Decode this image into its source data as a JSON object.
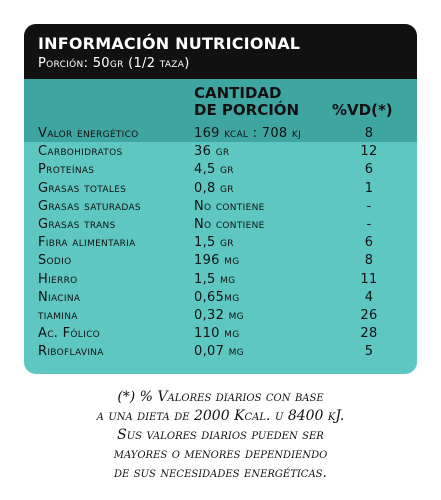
{
  "label": {
    "title": "INFORMACIÓN NUTRICIONAL",
    "portion": "Porción: 50gr (1/2 taza)",
    "column_headers": {
      "quantity_line1": "CANTIDAD",
      "quantity_line2": "DE PORCIÓN",
      "daily_value": "%VD(*)"
    },
    "rows": [
      {
        "name": "Valor energético",
        "quantity": "169 kcal : 708 kj",
        "daily_value": "8"
      },
      {
        "name": "Carbohidratos",
        "quantity": "36 gr",
        "daily_value": "12"
      },
      {
        "name": "Proteínas",
        "quantity": "4,5 gr",
        "daily_value": "6"
      },
      {
        "name": "Grasas totales",
        "quantity": "0,8 gr",
        "daily_value": "1"
      },
      {
        "name": "Grasas saturadas",
        "quantity": "No contiene",
        "daily_value": "-"
      },
      {
        "name": "Grasas trans",
        "quantity": "No contiene",
        "daily_value": "-"
      },
      {
        "name": "Fibra alimentaria",
        "quantity": "1,5 gr",
        "daily_value": "6"
      },
      {
        "name": "Sodio",
        "quantity": "196 mg",
        "daily_value": "8"
      },
      {
        "name": "Hierro",
        "quantity": "1,5 mg",
        "daily_value": "11"
      },
      {
        "name": "Niacina",
        "quantity": "0,65mg",
        "daily_value": "4"
      },
      {
        "name": "tiamina",
        "quantity": "0,32 mg",
        "daily_value": "26"
      },
      {
        "name": "Ac. Fólico",
        "quantity": "110 µg",
        "daily_value": "28"
      },
      {
        "name": "Riboflavina",
        "quantity": "0,07 mg",
        "daily_value": "5"
      }
    ]
  },
  "footnote": {
    "line1": "(*) % Valores diarios con base",
    "line2": "a una dieta de 2000 Kcal. u 8400 kJ.",
    "line3": "Sus valores diarios pueden ser",
    "line4": "mayores o menores dependiendo",
    "line5": "de sus necesidades energéticas."
  },
  "colors": {
    "header_bg": "#111111",
    "band_bg": "#3fa5a1",
    "table_bg": "#5fc7c1"
  }
}
